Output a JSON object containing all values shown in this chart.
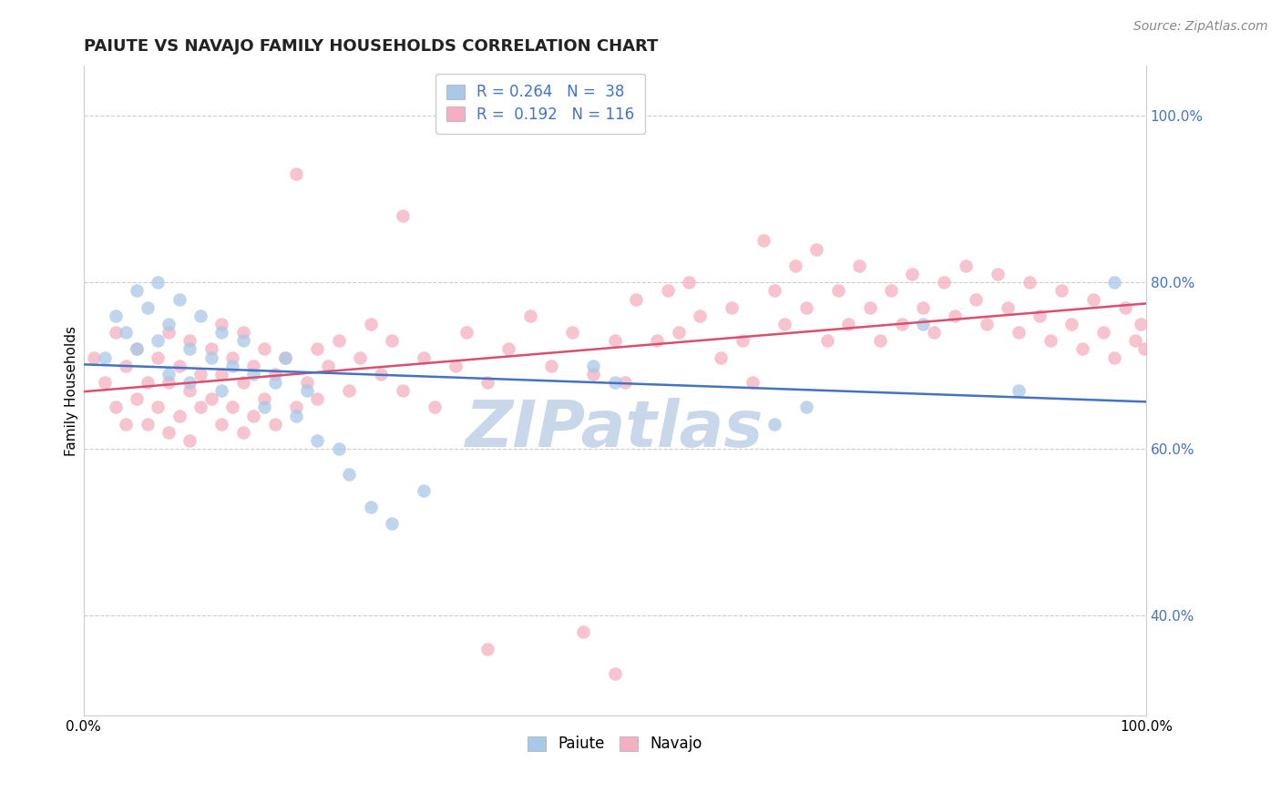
{
  "title": "PAIUTE VS NAVAJO FAMILY HOUSEHOLDS CORRELATION CHART",
  "source": "Source: ZipAtlas.com",
  "ylabel": "Family Households",
  "xlim": [
    0.0,
    1.0
  ],
  "ylim": [
    0.28,
    1.06
  ],
  "yticks": [
    0.4,
    0.6,
    0.8,
    1.0
  ],
  "ytick_labels": [
    "40.0%",
    "60.0%",
    "80.0%",
    "100.0%"
  ],
  "xticks": [
    0.0,
    1.0
  ],
  "xtick_labels": [
    "0.0%",
    "100.0%"
  ],
  "paiute_color": "#a8c8e8",
  "navajo_color": "#f4afc0",
  "paiute_line_color": "#4472c4",
  "navajo_line_color": "#d94f6e",
  "paiute_R": 0.264,
  "paiute_N": 38,
  "navajo_R": 0.192,
  "navajo_N": 116,
  "watermark": "ZIPatlas",
  "background_color": "#ffffff",
  "grid_color": "#cccccc",
  "paiute_scatter": [
    [
      0.02,
      0.71
    ],
    [
      0.03,
      0.76
    ],
    [
      0.04,
      0.74
    ],
    [
      0.05,
      0.79
    ],
    [
      0.05,
      0.72
    ],
    [
      0.06,
      0.77
    ],
    [
      0.07,
      0.8
    ],
    [
      0.07,
      0.73
    ],
    [
      0.08,
      0.75
    ],
    [
      0.08,
      0.69
    ],
    [
      0.09,
      0.78
    ],
    [
      0.1,
      0.72
    ],
    [
      0.1,
      0.68
    ],
    [
      0.11,
      0.76
    ],
    [
      0.12,
      0.71
    ],
    [
      0.13,
      0.74
    ],
    [
      0.13,
      0.67
    ],
    [
      0.14,
      0.7
    ],
    [
      0.15,
      0.73
    ],
    [
      0.16,
      0.69
    ],
    [
      0.17,
      0.65
    ],
    [
      0.18,
      0.68
    ],
    [
      0.19,
      0.71
    ],
    [
      0.2,
      0.64
    ],
    [
      0.21,
      0.67
    ],
    [
      0.22,
      0.61
    ],
    [
      0.24,
      0.6
    ],
    [
      0.25,
      0.57
    ],
    [
      0.27,
      0.53
    ],
    [
      0.29,
      0.51
    ],
    [
      0.32,
      0.55
    ],
    [
      0.48,
      0.7
    ],
    [
      0.5,
      0.68
    ],
    [
      0.65,
      0.63
    ],
    [
      0.68,
      0.65
    ],
    [
      0.79,
      0.75
    ],
    [
      0.88,
      0.67
    ],
    [
      0.97,
      0.8
    ]
  ],
  "navajo_scatter": [
    [
      0.01,
      0.71
    ],
    [
      0.02,
      0.68
    ],
    [
      0.03,
      0.74
    ],
    [
      0.03,
      0.65
    ],
    [
      0.04,
      0.7
    ],
    [
      0.04,
      0.63
    ],
    [
      0.05,
      0.72
    ],
    [
      0.05,
      0.66
    ],
    [
      0.06,
      0.68
    ],
    [
      0.06,
      0.63
    ],
    [
      0.07,
      0.71
    ],
    [
      0.07,
      0.65
    ],
    [
      0.08,
      0.74
    ],
    [
      0.08,
      0.68
    ],
    [
      0.08,
      0.62
    ],
    [
      0.09,
      0.7
    ],
    [
      0.09,
      0.64
    ],
    [
      0.1,
      0.73
    ],
    [
      0.1,
      0.67
    ],
    [
      0.1,
      0.61
    ],
    [
      0.11,
      0.69
    ],
    [
      0.11,
      0.65
    ],
    [
      0.12,
      0.72
    ],
    [
      0.12,
      0.66
    ],
    [
      0.13,
      0.75
    ],
    [
      0.13,
      0.69
    ],
    [
      0.13,
      0.63
    ],
    [
      0.14,
      0.71
    ],
    [
      0.14,
      0.65
    ],
    [
      0.15,
      0.74
    ],
    [
      0.15,
      0.68
    ],
    [
      0.15,
      0.62
    ],
    [
      0.16,
      0.7
    ],
    [
      0.16,
      0.64
    ],
    [
      0.17,
      0.72
    ],
    [
      0.17,
      0.66
    ],
    [
      0.18,
      0.69
    ],
    [
      0.18,
      0.63
    ],
    [
      0.19,
      0.71
    ],
    [
      0.2,
      0.65
    ],
    [
      0.21,
      0.68
    ],
    [
      0.22,
      0.72
    ],
    [
      0.22,
      0.66
    ],
    [
      0.23,
      0.7
    ],
    [
      0.24,
      0.73
    ],
    [
      0.25,
      0.67
    ],
    [
      0.26,
      0.71
    ],
    [
      0.27,
      0.75
    ],
    [
      0.28,
      0.69
    ],
    [
      0.29,
      0.73
    ],
    [
      0.3,
      0.67
    ],
    [
      0.32,
      0.71
    ],
    [
      0.33,
      0.65
    ],
    [
      0.35,
      0.7
    ],
    [
      0.36,
      0.74
    ],
    [
      0.38,
      0.68
    ],
    [
      0.4,
      0.72
    ],
    [
      0.42,
      0.76
    ],
    [
      0.44,
      0.7
    ],
    [
      0.46,
      0.74
    ],
    [
      0.48,
      0.69
    ],
    [
      0.5,
      0.73
    ],
    [
      0.51,
      0.68
    ],
    [
      0.52,
      0.78
    ],
    [
      0.54,
      0.73
    ],
    [
      0.55,
      0.79
    ],
    [
      0.56,
      0.74
    ],
    [
      0.57,
      0.8
    ],
    [
      0.58,
      0.76
    ],
    [
      0.6,
      0.71
    ],
    [
      0.61,
      0.77
    ],
    [
      0.62,
      0.73
    ],
    [
      0.63,
      0.68
    ],
    [
      0.64,
      0.85
    ],
    [
      0.65,
      0.79
    ],
    [
      0.66,
      0.75
    ],
    [
      0.67,
      0.82
    ],
    [
      0.68,
      0.77
    ],
    [
      0.69,
      0.84
    ],
    [
      0.7,
      0.73
    ],
    [
      0.71,
      0.79
    ],
    [
      0.72,
      0.75
    ],
    [
      0.73,
      0.82
    ],
    [
      0.74,
      0.77
    ],
    [
      0.75,
      0.73
    ],
    [
      0.76,
      0.79
    ],
    [
      0.77,
      0.75
    ],
    [
      0.78,
      0.81
    ],
    [
      0.79,
      0.77
    ],
    [
      0.8,
      0.74
    ],
    [
      0.81,
      0.8
    ],
    [
      0.82,
      0.76
    ],
    [
      0.83,
      0.82
    ],
    [
      0.84,
      0.78
    ],
    [
      0.85,
      0.75
    ],
    [
      0.86,
      0.81
    ],
    [
      0.87,
      0.77
    ],
    [
      0.88,
      0.74
    ],
    [
      0.89,
      0.8
    ],
    [
      0.9,
      0.76
    ],
    [
      0.91,
      0.73
    ],
    [
      0.92,
      0.79
    ],
    [
      0.93,
      0.75
    ],
    [
      0.94,
      0.72
    ],
    [
      0.95,
      0.78
    ],
    [
      0.96,
      0.74
    ],
    [
      0.97,
      0.71
    ],
    [
      0.98,
      0.77
    ],
    [
      0.99,
      0.73
    ],
    [
      0.995,
      0.75
    ],
    [
      0.998,
      0.72
    ],
    [
      0.2,
      0.93
    ],
    [
      0.3,
      0.88
    ],
    [
      0.38,
      0.36
    ],
    [
      0.47,
      0.38
    ],
    [
      0.5,
      0.33
    ]
  ],
  "legend_labels": [
    "Paiute",
    "Navajo"
  ],
  "title_fontsize": 13,
  "axis_label_fontsize": 11,
  "tick_fontsize": 11,
  "legend_fontsize": 12,
  "watermark_fontsize": 52,
  "source_fontsize": 10
}
